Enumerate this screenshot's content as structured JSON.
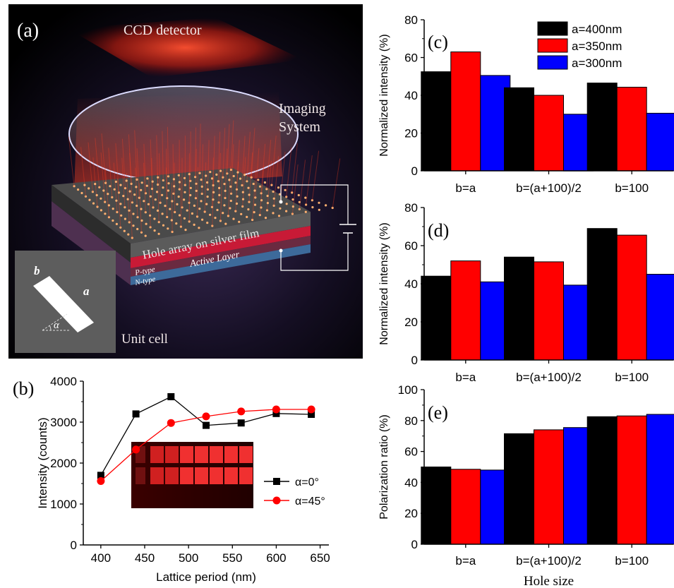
{
  "panel_a": {
    "label": "(a)",
    "ccd_label": "CCD detector",
    "imaging_line1": "Imaging",
    "imaging_line2": "System",
    "film_label": "Hole array on silver film",
    "active_label": "Active Layer",
    "ptype_label": "P-type",
    "ntype_label": "N-type",
    "unit_cell_label": "Unit cell",
    "inset_b": "b",
    "inset_a": "a",
    "inset_alpha": "α"
  },
  "chart_data": [
    {
      "id": "b",
      "panel_label": "(b)",
      "type": "line",
      "xlabel": "Lattice period (nm)",
      "ylabel": "Intensity (counts)",
      "xlim": [
        380,
        660
      ],
      "ylim": [
        0,
        4000
      ],
      "xticks": [
        400,
        450,
        500,
        550,
        600,
        650
      ],
      "yticks": [
        0,
        1000,
        2000,
        3000,
        4000
      ],
      "x": [
        400,
        440,
        480,
        520,
        560,
        600,
        640
      ],
      "series": [
        {
          "name": "α=0°",
          "color": "#000000",
          "marker": "square",
          "values": [
            1700,
            3200,
            3620,
            2920,
            2980,
            3210,
            3190
          ]
        },
        {
          "name": "α=45°",
          "color": "#ff0000",
          "marker": "circle",
          "values": [
            1560,
            2330,
            2980,
            3140,
            3260,
            3310,
            3310
          ]
        }
      ],
      "legend_position": "bottom-right",
      "inset": "image"
    },
    {
      "id": "c",
      "panel_label": "(c)",
      "type": "bar",
      "ylabel": "Normalized intensity (%)",
      "ylim": [
        0,
        80
      ],
      "yticks": [
        0,
        20,
        40,
        60,
        80
      ],
      "categories": [
        "b=a",
        "b=(a+100)/2",
        "b=100"
      ],
      "series": [
        {
          "name": "a=400nm",
          "color": "#000000",
          "values": [
            52.5,
            44,
            46.5
          ]
        },
        {
          "name": "a=350nm",
          "color": "#ff0000",
          "values": [
            63,
            40,
            44.3
          ]
        },
        {
          "name": "a=300nm",
          "color": "#0000ff",
          "values": [
            50.5,
            30,
            30.5
          ]
        }
      ],
      "legend_position": "top-right"
    },
    {
      "id": "d",
      "panel_label": "(d)",
      "type": "bar",
      "ylabel": "Normalized intensity (%)",
      "ylim": [
        0,
        80
      ],
      "yticks": [
        0,
        20,
        40,
        60,
        80
      ],
      "categories": [
        "b=a",
        "b=(a+100)/2",
        "b=100"
      ],
      "series": [
        {
          "name": "a=400nm",
          "color": "#000000",
          "values": [
            44,
            54,
            69
          ]
        },
        {
          "name": "a=350nm",
          "color": "#ff0000",
          "values": [
            52,
            51.5,
            65.5
          ]
        },
        {
          "name": "a=300nm",
          "color": "#0000ff",
          "values": [
            41,
            39.3,
            45
          ]
        }
      ]
    },
    {
      "id": "e",
      "panel_label": "(e)",
      "type": "bar",
      "ylabel": "Polarization ratio (%)",
      "xlabel": "Hole size",
      "ylim": [
        0,
        100
      ],
      "yticks": [
        0,
        20,
        40,
        60,
        80,
        100
      ],
      "categories": [
        "b=a",
        "b=(a+100)/2",
        "b=100"
      ],
      "series": [
        {
          "name": "a=400nm",
          "color": "#000000",
          "values": [
            50,
            71.5,
            82.5
          ]
        },
        {
          "name": "a=350nm",
          "color": "#ff0000",
          "values": [
            48.5,
            74,
            83
          ]
        },
        {
          "name": "a=300nm",
          "color": "#0000ff",
          "values": [
            48,
            75.5,
            84
          ]
        }
      ]
    }
  ]
}
